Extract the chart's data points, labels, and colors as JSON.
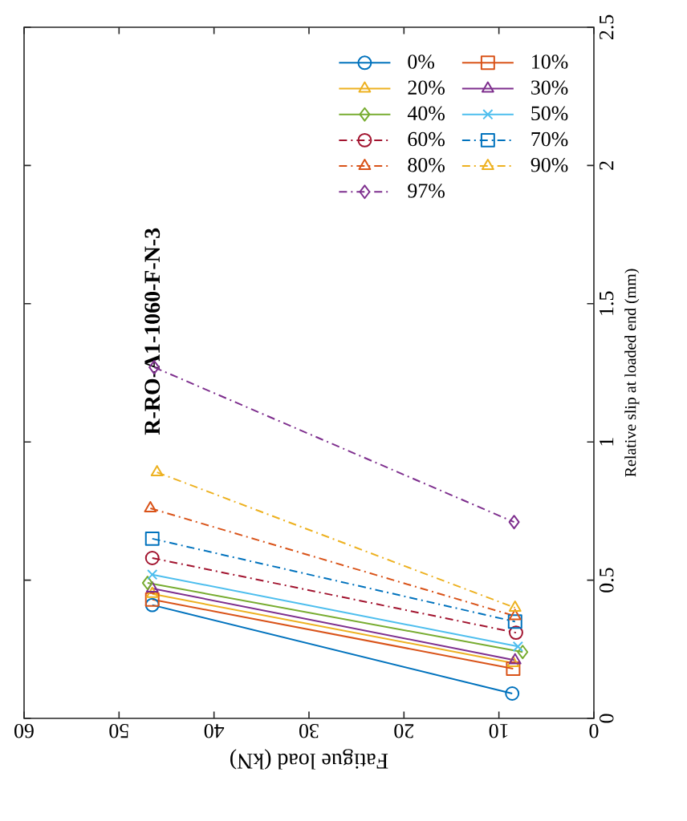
{
  "chart_data": {
    "type": "line",
    "title": "R-RO-A1-1060-F-N-3",
    "xlabel": "Fatigue load (kN)",
    "ylabel": "Relative slip at loaded end (mm)",
    "xlim": [
      60,
      0
    ],
    "ylim": [
      0,
      2.5
    ],
    "xticks": [
      0,
      10,
      20,
      30,
      40,
      50,
      60
    ],
    "yticks": [
      0,
      0.5,
      1,
      1.5,
      2,
      2.5
    ],
    "grid": false,
    "legend": "top right",
    "series": [
      {
        "name": "0%",
        "color": "#0072bd",
        "marker": "circle",
        "line_style": "solid",
        "x": [
          46.5,
          8.6
        ],
        "values": [
          0.41,
          0.09
        ]
      },
      {
        "name": "10%",
        "color": "#d95319",
        "marker": "square",
        "line_style": "solid",
        "x": [
          46.5,
          8.5
        ],
        "values": [
          0.43,
          0.18
        ]
      },
      {
        "name": "20%",
        "color": "#edb120",
        "marker": "triangle",
        "line_style": "solid",
        "x": [
          46.5,
          8.5
        ],
        "values": [
          0.45,
          0.2
        ]
      },
      {
        "name": "30%",
        "color": "#7e2f8e",
        "marker": "triangle",
        "line_style": "solid",
        "x": [
          46.5,
          8.3
        ],
        "values": [
          0.47,
          0.21
        ]
      },
      {
        "name": "40%",
        "color": "#77ac30",
        "marker": "diamond",
        "line_style": "solid",
        "x": [
          47,
          7.5
        ],
        "values": [
          0.49,
          0.24
        ]
      },
      {
        "name": "50%",
        "color": "#4dbeee",
        "marker": "cross",
        "line_style": "solid",
        "x": [
          46.5,
          8
        ],
        "values": [
          0.52,
          0.26
        ]
      },
      {
        "name": "60%",
        "color": "#a2142f",
        "marker": "circle",
        "line_style": "dashdot",
        "x": [
          46.5,
          8.2
        ],
        "values": [
          0.58,
          0.31
        ]
      },
      {
        "name": "70%",
        "color": "#0072bd",
        "marker": "square",
        "line_style": "dashdot",
        "x": [
          46.5,
          8.3
        ],
        "values": [
          0.65,
          0.35
        ]
      },
      {
        "name": "80%",
        "color": "#d95319",
        "marker": "triangle",
        "line_style": "dashdot",
        "x": [
          46.7,
          8.3
        ],
        "values": [
          0.76,
          0.37
        ]
      },
      {
        "name": "90%",
        "color": "#edb120",
        "marker": "triangle",
        "line_style": "dashdot",
        "x": [
          46,
          8.3
        ],
        "values": [
          0.89,
          0.4
        ]
      },
      {
        "name": "97%",
        "color": "#7e2f8e",
        "marker": "diamond",
        "line_style": "dashdot",
        "x": [
          46.3,
          8.4
        ],
        "values": [
          1.27,
          0.71
        ]
      }
    ]
  }
}
